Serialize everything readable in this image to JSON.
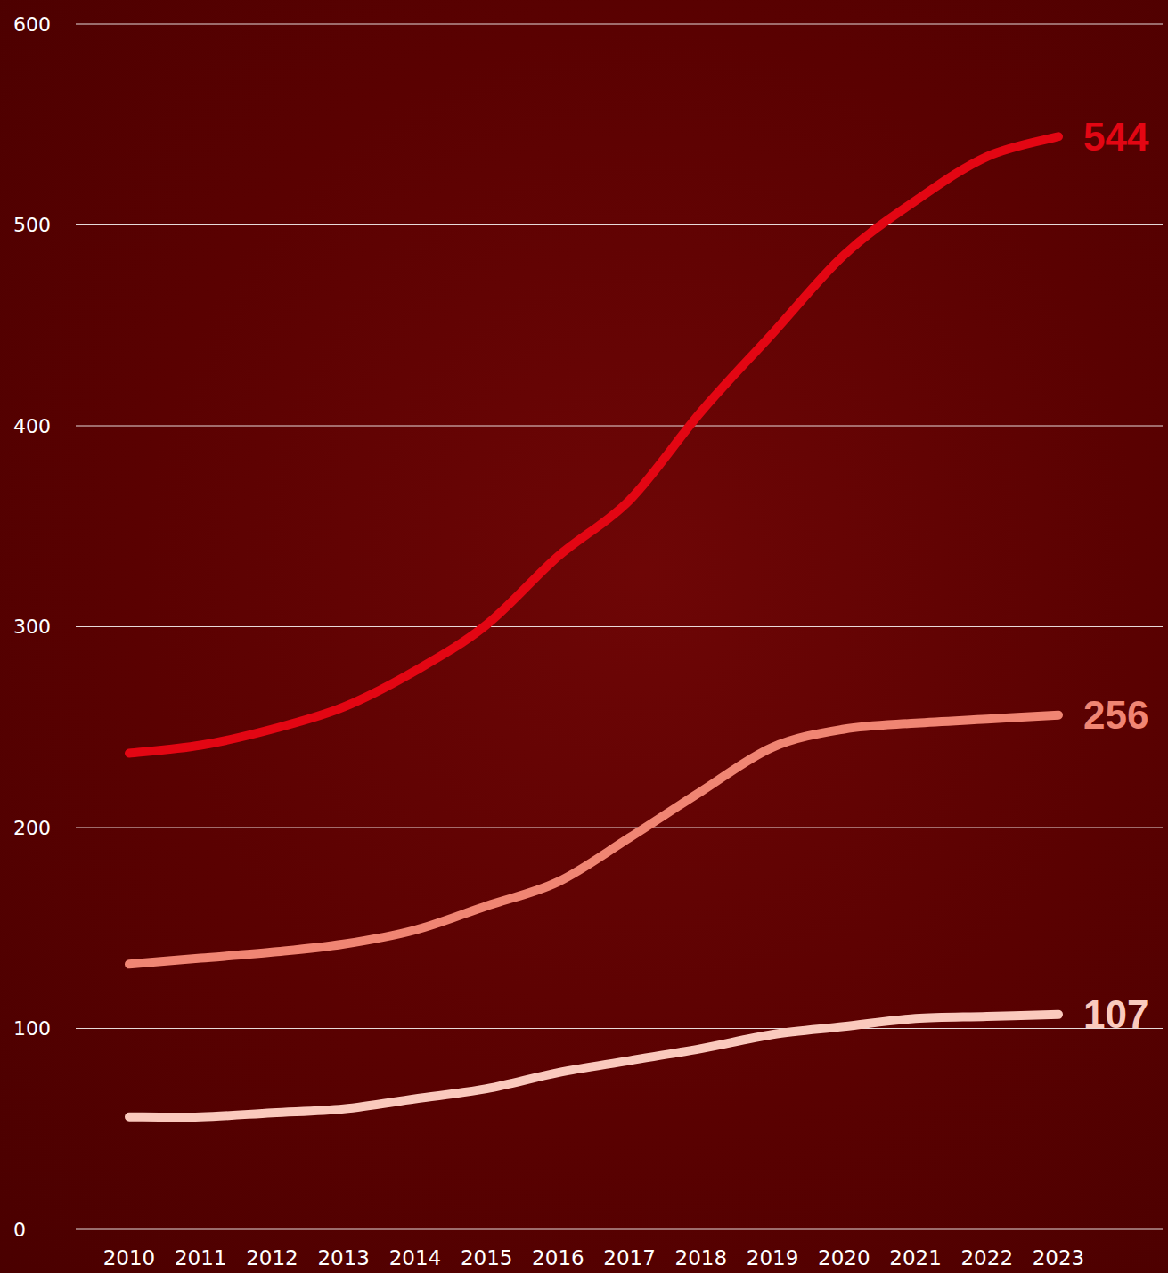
{
  "chart_data": {
    "type": "line",
    "categories": [
      "2010",
      "2011",
      "2012",
      "2013",
      "2014",
      "2015",
      "2016",
      "2017",
      "2018",
      "2019",
      "2020",
      "2021",
      "2022",
      "2023"
    ],
    "series": [
      {
        "color": "#e30613",
        "values": [
          237,
          241,
          249,
          260,
          278,
          301,
          335,
          363,
          407,
          446,
          485,
          512,
          534,
          544
        ]
      },
      {
        "color": "#f08573",
        "values": [
          132,
          135,
          138,
          142,
          149,
          161,
          173,
          195,
          218,
          240,
          249,
          252,
          254,
          256
        ]
      },
      {
        "color": "#fac9bd",
        "values": [
          56,
          56,
          58,
          60,
          65,
          70,
          78,
          84,
          90,
          97,
          101,
          105,
          106,
          107
        ]
      }
    ],
    "ylim": [
      0,
      600
    ],
    "yticks": [
      0,
      100,
      200,
      300,
      400,
      500,
      600
    ],
    "grid": true,
    "data_labels": true
  }
}
